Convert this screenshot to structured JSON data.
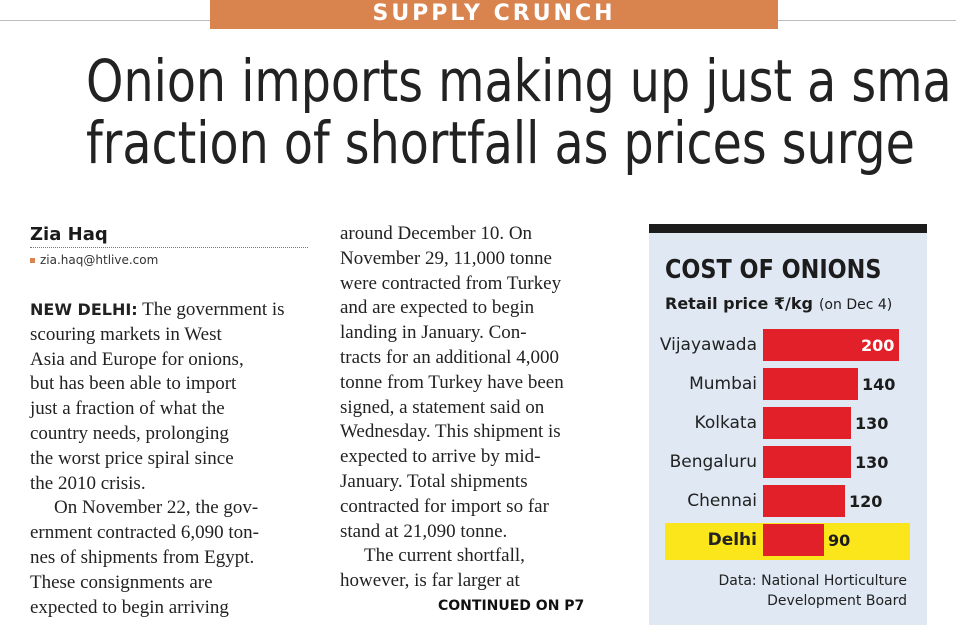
{
  "kicker": "SUPPLY CRUNCH",
  "headline": {
    "line1": "Onion imports making up just a small",
    "line2": "fraction of shortfall as prices surge"
  },
  "byline": {
    "name": "Zia Haq",
    "email": "zia.haq@htlive.com"
  },
  "article": {
    "dateline": "NEW DELHI:",
    "col1": [
      "The government is",
      "scouring markets in West",
      "Asia and Europe for onions,",
      "but has been able to import",
      "just a fraction of what the",
      "country needs, prolonging",
      "the worst price spiral since",
      "the 2010 crisis.",
      "On November 22, the gov-",
      "ernment contracted 6,090 ton-",
      "nes of shipments from Egypt.",
      "These consignments are",
      "expected to begin arriving"
    ],
    "col2": [
      "around December 10. On",
      "November 29, 11,000 tonne",
      "were contracted from Turkey",
      "and are expected to begin",
      "landing in January. Con-",
      "tracts for an additional 4,000",
      "tonne from Turkey have been",
      "signed, a statement said on",
      "Wednesday. This shipment is",
      "expected to arrive by mid-",
      "January. Total shipments",
      "contracted for import so far",
      "stand at 21,090 tonne.",
      "The current shortfall,",
      "however, is far larger at"
    ],
    "continued": "CONTINUED ON P7"
  },
  "colors": {
    "accent": "#d9844f",
    "bar": "#e1202a",
    "highlight": "#fbe61b",
    "box_bg": "#dfe8f3"
  },
  "chart_data": {
    "type": "bar",
    "title": "COST OF ONIONS",
    "subtitle": "Retail price ₹/kg",
    "note": "(on Dec 4)",
    "categories": [
      "Vijayawada",
      "Mumbai",
      "Kolkata",
      "Bengaluru",
      "Chennai",
      "Delhi"
    ],
    "values": [
      200,
      140,
      130,
      130,
      120,
      90
    ],
    "value_labels": [
      "200",
      "140",
      "130",
      "130",
      "120",
      "90"
    ],
    "highlight": "Delhi",
    "source_line1": "Data: National Horticulture",
    "source_line2": "Development Board"
  }
}
